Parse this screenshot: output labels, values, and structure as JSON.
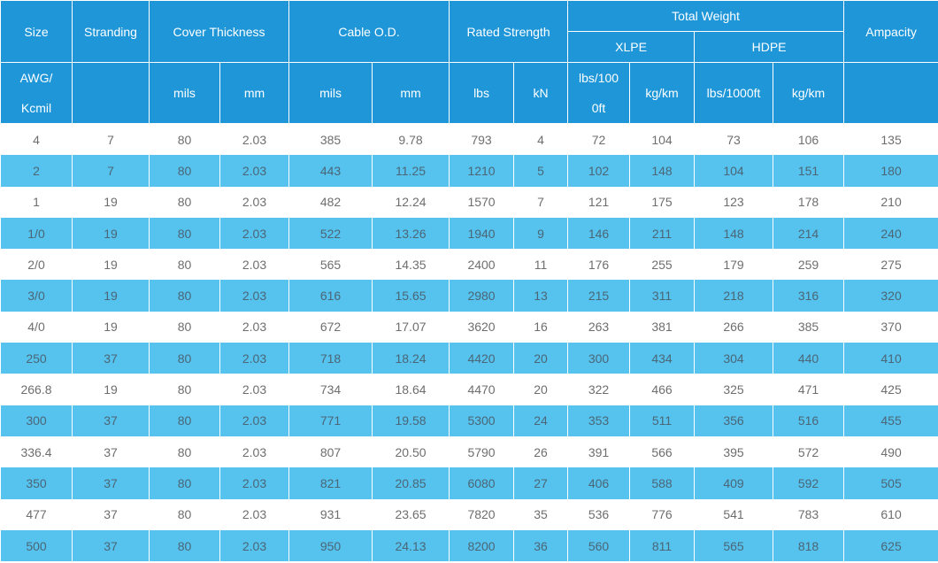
{
  "header": {
    "size": "Size",
    "stranding": "Stranding",
    "cover_thickness": "Cover Thickness",
    "cable_od": "Cable O.D.",
    "rated_strength": "Rated Strength",
    "total_weight": "Total Weight",
    "ampacity": "Ampacity",
    "xlpe": "XLPE",
    "hdpe": "HDPE",
    "units": {
      "size": "AWG/\nKcmil",
      "cover_mils": "mils",
      "cover_mm": "mm",
      "od_mils": "mils",
      "od_mm": "mm",
      "strength_lbs": "lbs",
      "strength_kn": "kN",
      "xlpe_lbs": "lbs/100\n0ft",
      "xlpe_kg": "kg/km",
      "hdpe_lbs": "lbs/1000ft",
      "hdpe_kg": "kg/km"
    }
  },
  "rows": [
    [
      "4",
      "7",
      "80",
      "2.03",
      "385",
      "9.78",
      "793",
      "4",
      "72",
      "104",
      "73",
      "106",
      "135"
    ],
    [
      "2",
      "7",
      "80",
      "2.03",
      "443",
      "11.25",
      "1210",
      "5",
      "102",
      "148",
      "104",
      "151",
      "180"
    ],
    [
      "1",
      "19",
      "80",
      "2.03",
      "482",
      "12.24",
      "1570",
      "7",
      "121",
      "175",
      "123",
      "178",
      "210"
    ],
    [
      "1/0",
      "19",
      "80",
      "2.03",
      "522",
      "13.26",
      "1940",
      "9",
      "146",
      "211",
      "148",
      "214",
      "240"
    ],
    [
      "2/0",
      "19",
      "80",
      "2.03",
      "565",
      "14.35",
      "2400",
      "11",
      "176",
      "255",
      "179",
      "259",
      "275"
    ],
    [
      "3/0",
      "19",
      "80",
      "2.03",
      "616",
      "15.65",
      "2980",
      "13",
      "215",
      "311",
      "218",
      "316",
      "320"
    ],
    [
      "4/0",
      "19",
      "80",
      "2.03",
      "672",
      "17.07",
      "3620",
      "16",
      "263",
      "381",
      "266",
      "385",
      "370"
    ],
    [
      "250",
      "37",
      "80",
      "2.03",
      "718",
      "18.24",
      "4420",
      "20",
      "300",
      "434",
      "304",
      "440",
      "410"
    ],
    [
      "266.8",
      "19",
      "80",
      "2.03",
      "734",
      "18.64",
      "4470",
      "20",
      "322",
      "466",
      "325",
      "471",
      "425"
    ],
    [
      "300",
      "37",
      "80",
      "2.03",
      "771",
      "19.58",
      "5300",
      "24",
      "353",
      "511",
      "356",
      "516",
      "455"
    ],
    [
      "336.4",
      "37",
      "80",
      "2.03",
      "807",
      "20.50",
      "5790",
      "26",
      "391",
      "566",
      "395",
      "572",
      "490"
    ],
    [
      "350",
      "37",
      "80",
      "2.03",
      "821",
      "20.85",
      "6080",
      "27",
      "406",
      "588",
      "409",
      "592",
      "505"
    ],
    [
      "477",
      "37",
      "80",
      "2.03",
      "931",
      "23.65",
      "7820",
      "35",
      "536",
      "776",
      "541",
      "783",
      "610"
    ],
    [
      "500",
      "37",
      "80",
      "2.03",
      "950",
      "24.13",
      "8200",
      "36",
      "560",
      "811",
      "565",
      "818",
      "625"
    ]
  ]
}
